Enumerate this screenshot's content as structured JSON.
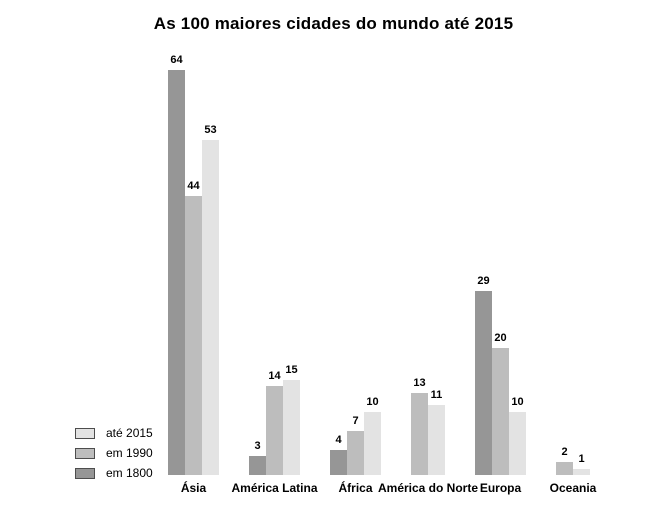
{
  "chart_data": {
    "type": "bar",
    "title": "As 100 maiores cidades do mundo até 2015",
    "categories": [
      "Ásia",
      "América Latina",
      "África",
      "América do Norte",
      "Europa",
      "Oceania"
    ],
    "series": [
      {
        "name": "em 1800",
        "color": "#969696",
        "values": [
          64,
          3,
          4,
          null,
          29,
          null
        ]
      },
      {
        "name": "em 1990",
        "color": "#bdbdbd",
        "values": [
          44,
          14,
          7,
          13,
          20,
          2
        ]
      },
      {
        "name": "até 2015",
        "color": "#e3e3e3",
        "values": [
          53,
          15,
          10,
          11,
          10,
          1
        ]
      }
    ],
    "value_labels": true,
    "ylim": [
      0,
      64
    ],
    "grid": false,
    "axis_lines": false,
    "legend_position": "bottom-left",
    "legend_order": [
      "até 2015",
      "em 1990",
      "em 1800"
    ],
    "background_color": "#ffffff",
    "text_color": "#000000"
  }
}
